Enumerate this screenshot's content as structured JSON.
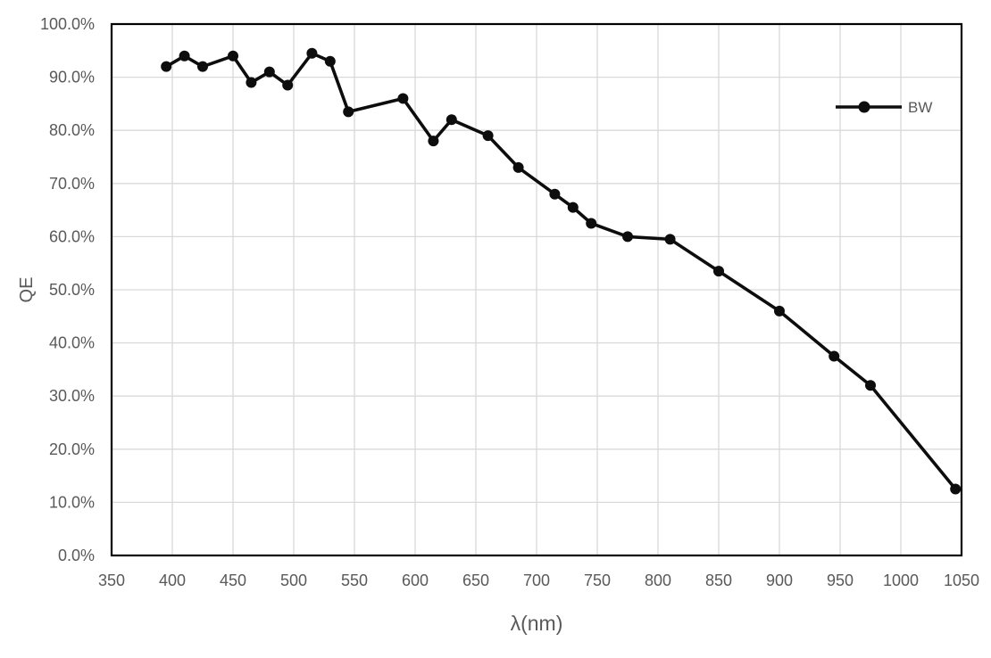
{
  "chart_data": {
    "type": "line",
    "title": "",
    "xlabel": "λ(nm)",
    "ylabel": "QE",
    "xlim": [
      350,
      1050
    ],
    "ylim": [
      0,
      100
    ],
    "grid": true,
    "x_ticks": [
      350,
      400,
      450,
      500,
      550,
      600,
      650,
      700,
      750,
      800,
      850,
      900,
      950,
      1000,
      1050
    ],
    "y_ticks": [
      0,
      10,
      20,
      30,
      40,
      50,
      60,
      70,
      80,
      90,
      100
    ],
    "y_tick_labels": [
      "0.0%",
      "10.0%",
      "20.0%",
      "30.0%",
      "40.0%",
      "50.0%",
      "60.0%",
      "70.0%",
      "80.0%",
      "90.0%",
      "100.0%"
    ],
    "legend": {
      "position": "inside-top-right",
      "entries": [
        "BW"
      ]
    },
    "series": [
      {
        "name": "BW",
        "marker": "circle",
        "x": [
          395,
          410,
          425,
          450,
          465,
          480,
          495,
          515,
          530,
          545,
          590,
          615,
          630,
          660,
          685,
          715,
          730,
          745,
          775,
          810,
          850,
          900,
          945,
          975,
          1045
        ],
        "y": [
          92,
          94,
          92,
          94,
          89,
          91,
          88.5,
          94.5,
          93,
          83.5,
          86,
          78,
          82,
          79,
          73,
          68,
          65.5,
          62.5,
          60,
          59.5,
          53.5,
          46,
          37.5,
          32,
          12.5
        ]
      }
    ],
    "colors": {
      "background": "#ffffff",
      "plot_border": "#000000",
      "gridline": "#d9d9d9",
      "tick_label": "#595959",
      "axis_title": "#595959",
      "legend_text": "#595959",
      "series_line": "#0d0d0d"
    }
  },
  "layout_labels": {
    "legend_bw": "BW",
    "x_axis_title": "λ(nm)",
    "y_axis_title": "QE"
  }
}
